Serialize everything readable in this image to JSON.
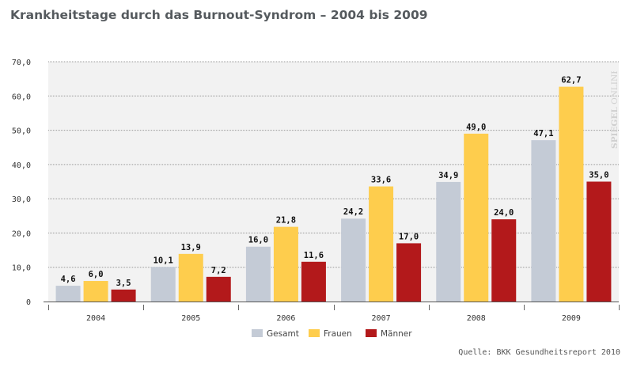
{
  "title": "Krankheitstage durch das Burnout-Syndrom – 2004 bis 2009",
  "source": "Quelle: BKK Gesundheitsreport 2010",
  "watermark": {
    "bold": "SPIEGEL",
    "light": "ONLINE"
  },
  "chart_data": {
    "type": "bar",
    "title": "Krankheitstage durch das Burnout-Syndrom – 2004 bis 2009",
    "categories": [
      "2004",
      "2005",
      "2006",
      "2007",
      "2008",
      "2009"
    ],
    "series": [
      {
        "name": "Gesamt",
        "color": "#c4cbd6",
        "values": [
          4.6,
          10.1,
          16.0,
          24.2,
          34.9,
          47.1
        ],
        "labels": [
          "4,6",
          "10,1",
          "16,0",
          "24,2",
          "34,9",
          "47,1"
        ]
      },
      {
        "name": "Frauen",
        "color": "#fecd4d",
        "values": [
          6.0,
          13.9,
          21.8,
          33.6,
          49.0,
          62.7
        ],
        "labels": [
          "6,0",
          "13,9",
          "21,8",
          "33,6",
          "49,0",
          "62,7"
        ]
      },
      {
        "name": "Männer",
        "color": "#b3191b",
        "values": [
          3.5,
          7.2,
          11.6,
          17.0,
          24.0,
          35.0
        ],
        "labels": [
          "3,5",
          "7,2",
          "11,6",
          "17,0",
          "24,0",
          "35,0"
        ]
      }
    ],
    "ylim": [
      0,
      70
    ],
    "yticks": [
      "0",
      "10,0",
      "20,0",
      "30,0",
      "40,0",
      "50,0",
      "60,0",
      "70,0"
    ],
    "xlabel": "",
    "ylabel": "",
    "grid": true,
    "legend": "bottom"
  }
}
